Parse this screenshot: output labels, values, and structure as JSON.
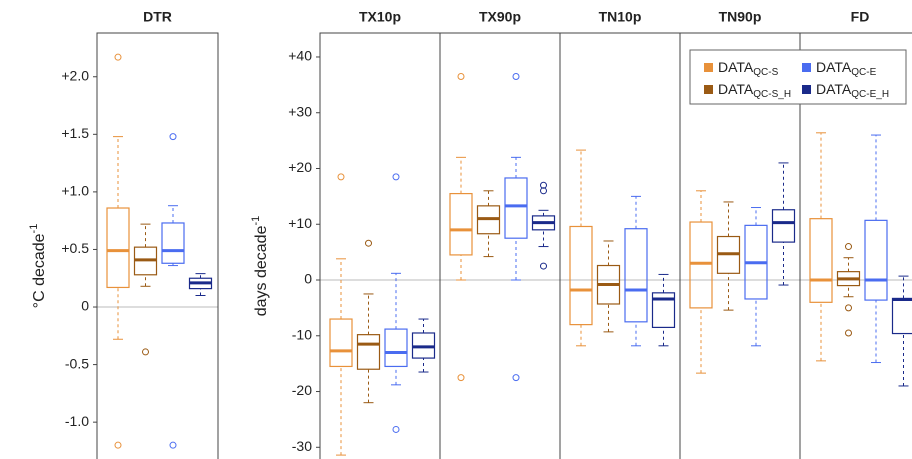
{
  "chart_data": [
    {
      "type": "box",
      "categories": [
        "DTR"
      ],
      "ylabel": "°C decade",
      "ylabel_superscript": "-1",
      "ylim": [
        -1.32,
        2.38
      ],
      "yticks": [
        {
          "value": 2,
          "label": "+2.0"
        },
        {
          "value": 1.5,
          "label": "+1.5"
        },
        {
          "value": 1,
          "label": "+1.0"
        },
        {
          "value": 0.5,
          "label": "+0.5"
        },
        0,
        -0.5,
        {
          "value": -1,
          "label": "-1.0"
        }
      ],
      "zero_line": true,
      "series": [
        {
          "color": "#e8913a",
          "boxes": [
            {
              "low": -0.28,
              "q1": 0.17,
              "median": 0.49,
              "q3": 0.86,
              "high": 1.48,
              "outliers": [
                2.17,
                -1.2
              ]
            }
          ]
        },
        {
          "color": "#9a5a14",
          "boxes": [
            {
              "low": 0.18,
              "q1": 0.28,
              "median": 0.41,
              "q3": 0.52,
              "high": 0.72,
              "outliers": [
                -0.39
              ]
            }
          ]
        },
        {
          "color": "#4a6cf0",
          "boxes": [
            {
              "low": 0.36,
              "q1": 0.38,
              "median": 0.49,
              "q3": 0.73,
              "high": 0.88,
              "outliers": [
                1.48,
                -1.2
              ]
            }
          ]
        },
        {
          "color": "#1a2a8a",
          "boxes": [
            {
              "low": 0.1,
              "q1": 0.16,
              "median": 0.21,
              "q3": 0.25,
              "high": 0.29,
              "outliers": []
            }
          ]
        }
      ]
    },
    {
      "type": "box",
      "categories": [
        "TX10p",
        "TX90p",
        "TN10p",
        "TN90p",
        "FD"
      ],
      "ylabel": "days decade",
      "ylabel_superscript": "-1",
      "ylim": [
        -32.1,
        44.3
      ],
      "yticks": [
        {
          "value": 40,
          "label": "+40"
        },
        {
          "value": 30,
          "label": "+30"
        },
        {
          "value": 20,
          "label": "+20"
        },
        {
          "value": 10,
          "label": "+10"
        },
        0,
        -10,
        -20,
        -30
      ],
      "zero_line": true,
      "series": [
        {
          "name": "DATA",
          "subscript": "QC-S",
          "color": "#e8913a",
          "boxes": [
            {
              "low": -31.4,
              "q1": -15.5,
              "median": -12.7,
              "q3": -7,
              "high": 3.8,
              "outliers": [
                18.5
              ]
            },
            {
              "low": 0,
              "q1": 4.5,
              "median": 9,
              "q3": 15.5,
              "high": 22,
              "outliers": [
                36.5,
                -17.5
              ]
            },
            {
              "low": -11.8,
              "q1": -8,
              "median": -1.8,
              "q3": 9.6,
              "high": 23.3,
              "outliers": []
            },
            {
              "low": -16.7,
              "q1": -5,
              "median": 3,
              "q3": 10.4,
              "high": 16,
              "outliers": []
            },
            {
              "low": -14.5,
              "q1": -4,
              "median": 0,
              "q3": 11,
              "high": 26.4,
              "outliers": []
            }
          ]
        },
        {
          "name": "DATA",
          "subscript": "QC-S_H",
          "color": "#9a5a14",
          "boxes": [
            {
              "low": -22,
              "q1": -16,
              "median": -11.5,
              "q3": -9.8,
              "high": -2.5,
              "outliers": [
                6.6
              ]
            },
            {
              "low": 4.2,
              "q1": 8.3,
              "median": 11,
              "q3": 13.3,
              "high": 16,
              "outliers": []
            },
            {
              "low": -9.3,
              "q1": -4.3,
              "median": -0.8,
              "q3": 2.6,
              "high": 7,
              "outliers": []
            },
            {
              "low": -5.4,
              "q1": 1.2,
              "median": 4.7,
              "q3": 7.8,
              "high": 14,
              "outliers": []
            },
            {
              "low": -3,
              "q1": -1,
              "median": 0.2,
              "q3": 1.5,
              "high": 4,
              "outliers": [
                6,
                -5,
                -9.5
              ]
            }
          ]
        },
        {
          "name": "DATA",
          "subscript": "QC-E",
          "color": "#4a6cf0",
          "boxes": [
            {
              "low": -18.8,
              "q1": -15.5,
              "median": -13,
              "q3": -8.8,
              "high": 1.2,
              "outliers": [
                18.5,
                -26.8
              ]
            },
            {
              "low": 0,
              "q1": 7.5,
              "median": 13.3,
              "q3": 18.3,
              "high": 22,
              "outliers": [
                36.5,
                -17.5
              ]
            },
            {
              "low": -11.8,
              "q1": -7.5,
              "median": -1.8,
              "q3": 9.2,
              "high": 15,
              "outliers": []
            },
            {
              "low": -11.8,
              "q1": -3.4,
              "median": 3.1,
              "q3": 9.8,
              "high": 13,
              "outliers": []
            },
            {
              "low": -14.8,
              "q1": -3.6,
              "median": 0,
              "q3": 10.7,
              "high": 26,
              "outliers": []
            }
          ]
        },
        {
          "name": "DATA",
          "subscript": "QC-E_H",
          "color": "#1a2a8a",
          "boxes": [
            {
              "low": -16.5,
              "q1": -14,
              "median": -12,
              "q3": -9.5,
              "high": -7,
              "outliers": []
            },
            {
              "low": 6,
              "q1": 9,
              "median": 10.3,
              "q3": 11.5,
              "high": 12.5,
              "outliers": [
                17,
                16,
                2.5
              ]
            },
            {
              "low": -11.8,
              "q1": -8.5,
              "median": -3.4,
              "q3": -2.3,
              "high": 1,
              "outliers": []
            },
            {
              "low": -0.9,
              "q1": 6.8,
              "median": 10.3,
              "q3": 12.6,
              "high": 21,
              "outliers": []
            },
            {
              "low": -19,
              "q1": -9.6,
              "median": -3.5,
              "q3": -3.3,
              "high": 0.7,
              "outliers": []
            }
          ]
        }
      ]
    }
  ]
}
